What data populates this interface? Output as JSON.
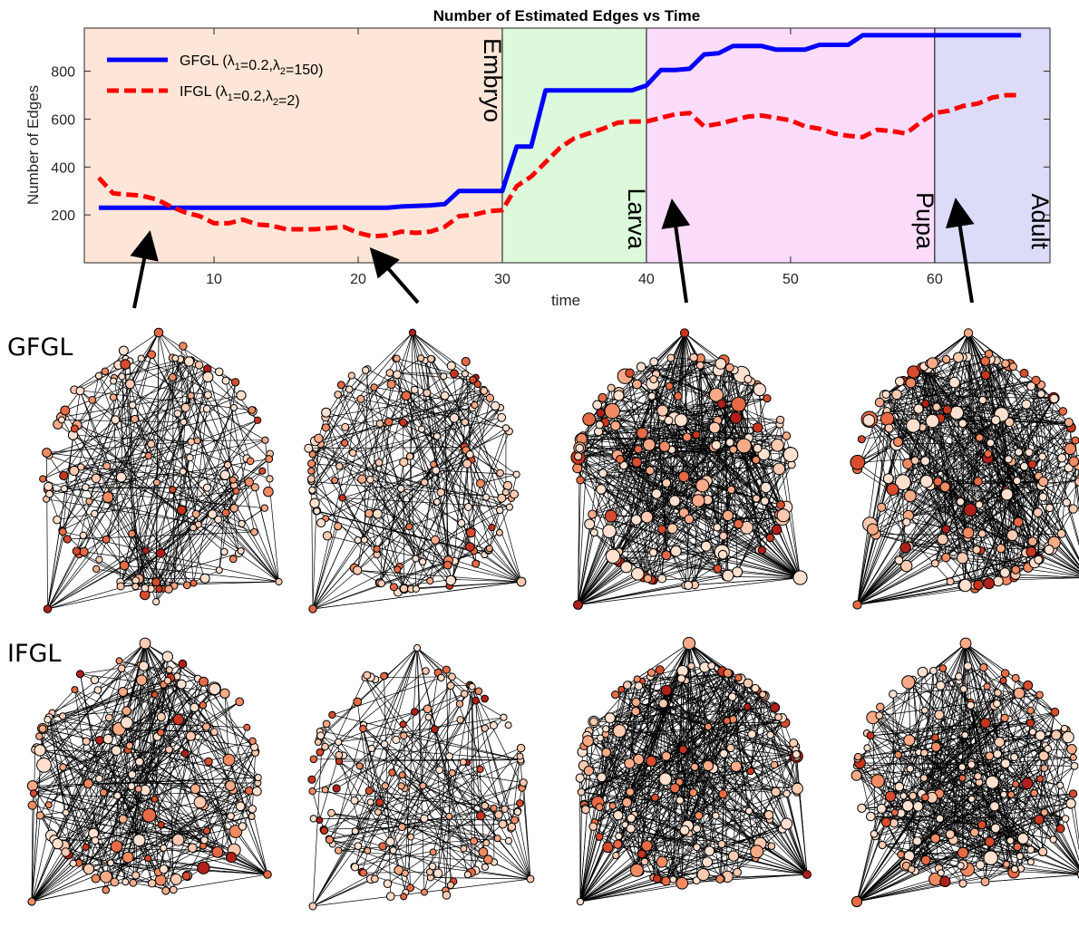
{
  "chart_data": {
    "type": "line",
    "title": "Number of Estimated Edges vs Time",
    "xlabel": "time",
    "ylabel": "Number of Edges",
    "xlim": [
      1,
      68
    ],
    "ylim": [
      0,
      980
    ],
    "xticks": [
      10,
      20,
      30,
      40,
      50,
      60
    ],
    "yticks": [
      200,
      400,
      600,
      800
    ],
    "legend_placement": "top-left",
    "grid": false,
    "stages": [
      {
        "label": "Embryo",
        "from": 1,
        "to": 30,
        "color": "#fde6d8"
      },
      {
        "label": "Larva",
        "from": 30,
        "to": 40,
        "color": "#dcf9dc"
      },
      {
        "label": "Pupa",
        "from": 40,
        "to": 60,
        "color": "#fbdcfb"
      },
      {
        "label": "Adult",
        "from": 60,
        "to": 68,
        "color": "#dcdcf8"
      }
    ],
    "series": [
      {
        "name": "GFGL (λ1=0.2,λ2=150)",
        "color": "#0000ff",
        "style": "solid",
        "x": [
          2,
          5,
          10,
          15,
          18,
          20,
          22,
          23,
          25,
          26,
          27,
          28,
          30,
          31,
          32,
          33,
          34,
          35,
          36,
          37,
          38,
          39,
          40,
          41,
          42,
          43,
          44,
          45,
          46,
          47,
          48,
          49,
          50,
          51,
          52,
          53,
          54,
          55,
          56,
          57,
          58,
          59,
          60,
          61,
          62,
          63,
          64,
          65,
          66
        ],
        "values": [
          230,
          230,
          230,
          230,
          230,
          230,
          230,
          235,
          240,
          245,
          300,
          300,
          300,
          485,
          485,
          720,
          720,
          720,
          720,
          720,
          720,
          720,
          740,
          805,
          805,
          810,
          870,
          875,
          905,
          905,
          905,
          890,
          890,
          890,
          910,
          910,
          910,
          950,
          950,
          950,
          950,
          950,
          950,
          950,
          950,
          950,
          950,
          950,
          950
        ]
      },
      {
        "name": "IFGL (λ1=0.2,λ2=2)",
        "color": "#ff0000",
        "style": "dashed",
        "x": [
          2,
          3,
          4,
          5,
          6,
          7,
          8,
          9,
          10,
          11,
          12,
          13,
          14,
          15,
          16,
          17,
          18,
          19,
          20,
          21,
          22,
          23,
          24,
          25,
          26,
          27,
          28,
          29,
          30,
          31,
          32,
          33,
          34,
          35,
          36,
          37,
          38,
          39,
          40,
          41,
          42,
          43,
          44,
          45,
          46,
          47,
          48,
          49,
          50,
          51,
          52,
          53,
          54,
          55,
          56,
          57,
          58,
          59,
          60,
          61,
          62,
          63,
          64,
          65,
          66
        ],
        "values": [
          355,
          290,
          285,
          280,
          265,
          235,
          210,
          195,
          165,
          165,
          180,
          160,
          155,
          140,
          140,
          140,
          145,
          150,
          125,
          110,
          115,
          130,
          125,
          130,
          150,
          195,
          200,
          215,
          220,
          320,
          360,
          420,
          480,
          520,
          540,
          560,
          585,
          590,
          590,
          605,
          620,
          625,
          570,
          580,
          595,
          610,
          615,
          605,
          595,
          570,
          560,
          540,
          530,
          525,
          555,
          550,
          540,
          585,
          625,
          635,
          655,
          665,
          690,
          700,
          700
        ]
      }
    ]
  },
  "panels": {
    "row_labels": [
      "GFGL",
      "IFGL"
    ]
  }
}
